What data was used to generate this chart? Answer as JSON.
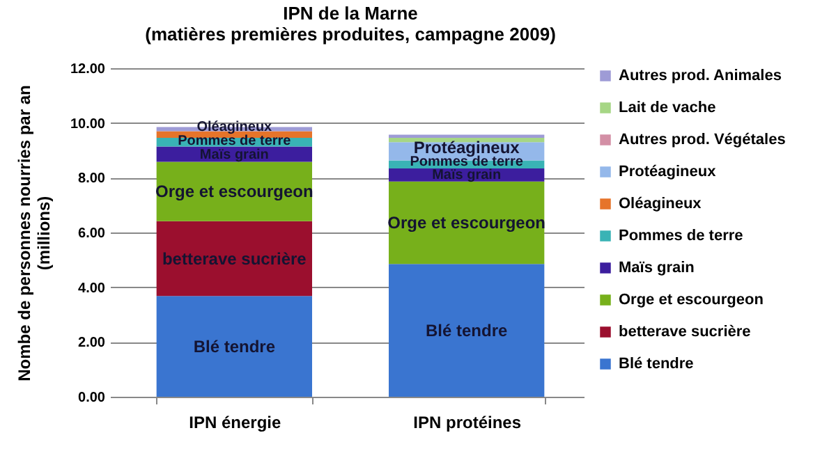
{
  "chart_data": {
    "type": "bar",
    "stacked": true,
    "title": "IPN de la Marne\n(matières premières produites, campagne 2009)",
    "ylabel": "Nombe de personnes nourries par an\n(millions)",
    "categories": [
      "IPN énergie",
      "IPN protéines"
    ],
    "series": [
      {
        "name": "Blé tendre",
        "color": "#3a75d0",
        "values": [
          3.68,
          4.85
        ]
      },
      {
        "name": "betterave sucrière",
        "color": "#9b0f2e",
        "values": [
          2.73,
          0
        ]
      },
      {
        "name": "Orge et escourgeon",
        "color": "#77b01b",
        "values": [
          2.17,
          3.01
        ]
      },
      {
        "name": "Maïs grain",
        "color": "#3c1e9e",
        "values": [
          0.56,
          0.48
        ]
      },
      {
        "name": "Pommes de terre",
        "color": "#39b3b5",
        "values": [
          0.32,
          0.29
        ]
      },
      {
        "name": "Oléagineux",
        "color": "#e6742a",
        "values": [
          0.24,
          0
        ]
      },
      {
        "name": "Protéagineux",
        "color": "#94b8ea",
        "values": [
          0,
          0.67
        ]
      },
      {
        "name": "Autres prod. Végétales",
        "color": "#d38fa5",
        "values": [
          null,
          0
        ]
      },
      {
        "name": "Lait de vache",
        "color": "#a6d685",
        "values": [
          0,
          0.16
        ]
      },
      {
        "name": "Autres prod. Animales",
        "color": "#9e9bd6",
        "values": [
          0.15,
          0.11
        ]
      }
    ],
    "ylim": [
      0,
      12
    ],
    "yticks": [
      {
        "value": 0,
        "label": "0.00"
      },
      {
        "value": 2,
        "label": "2.00"
      },
      {
        "value": 4,
        "label": "4.00"
      },
      {
        "value": 6,
        "label": "6.00"
      },
      {
        "value": 8,
        "label": "8.00"
      },
      {
        "value": 10,
        "label": "10.00"
      },
      {
        "value": 12,
        "label": "12.00"
      }
    ],
    "grid": "y",
    "legend": "right"
  }
}
